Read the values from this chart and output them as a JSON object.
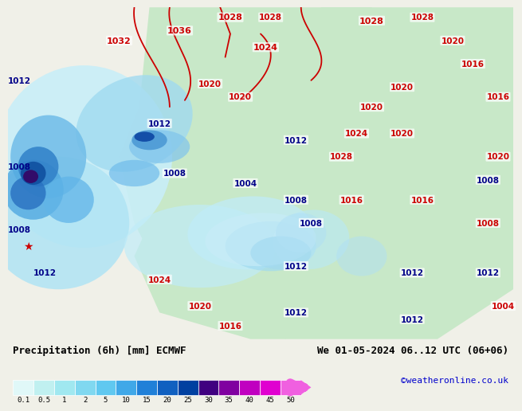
{
  "title_left": "Precipitation (6h) [mm] ECMWF",
  "title_right": "We 01-05-2024 06..12 UTC (06+06)",
  "credit": "©weatheronline.co.uk",
  "colorbar_values": [
    0.1,
    0.5,
    1,
    2,
    5,
    10,
    15,
    20,
    25,
    30,
    35,
    40,
    45,
    50
  ],
  "colorbar_colors": [
    "#e0f8f8",
    "#c0f0f0",
    "#a0e8f0",
    "#80d8f0",
    "#60c8f0",
    "#40a8e8",
    "#2080d8",
    "#1060c0",
    "#0040a0",
    "#400080",
    "#8000a0",
    "#c000c0",
    "#e000d0",
    "#f060e0"
  ],
  "bg_color": "#f0f0e8",
  "fig_width": 6.34,
  "fig_height": 4.9,
  "map_bg": "#c8e8c8",
  "ocean_color": "#b0d8f0",
  "title_fontsize": 9,
  "credit_color": "#0000cc"
}
